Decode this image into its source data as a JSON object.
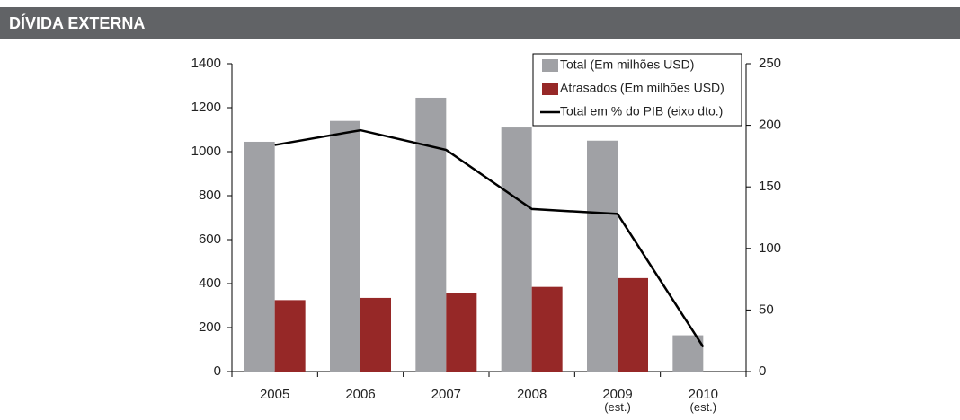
{
  "header": {
    "title": "DÍVIDA EXTERNA"
  },
  "chart_data": {
    "type": "bar",
    "categories": [
      "2005",
      "2006",
      "2007",
      "2008",
      "2009\n(est.)",
      "2010\n(est.)"
    ],
    "series": [
      {
        "name": "Total (Em milhões USD)",
        "color": "#a0a1a5",
        "values": [
          1045,
          1140,
          1245,
          1110,
          1050,
          165
        ]
      },
      {
        "name": "Atrasados (Em milhões USD)",
        "color": "#962827",
        "values": [
          325,
          335,
          358,
          385,
          425,
          null
        ]
      },
      {
        "name": "Total em % do PIB (eixo dto.)",
        "color": "#000000",
        "type": "line",
        "axis": "y2",
        "values": [
          184,
          196,
          180,
          132,
          128,
          20
        ]
      }
    ],
    "ylim": [
      0,
      1400
    ],
    "yticks": [
      0,
      200,
      400,
      600,
      800,
      1000,
      1200,
      1400
    ],
    "y2lim": [
      0,
      250
    ],
    "y2ticks": [
      0,
      50,
      100,
      150,
      200,
      250
    ],
    "legend": "top-right"
  }
}
